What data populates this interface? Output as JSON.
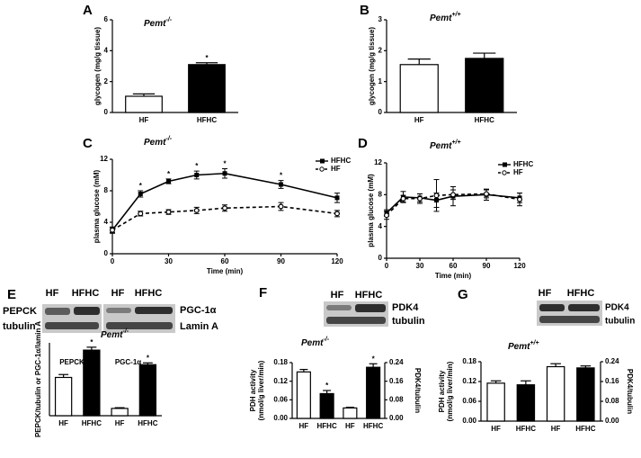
{
  "chart_data": [
    {
      "panel": "A",
      "type": "bar",
      "title": "Pemt",
      "title_superscript": "-/-",
      "ylabel": "glycogen (mg/g tissue)",
      "ylim": [
        0,
        6
      ],
      "yticks": [
        0,
        2,
        4,
        6
      ],
      "categories": [
        "HF",
        "HFHC"
      ],
      "series": [
        {
          "values": [
            1.05,
            3.1
          ],
          "errors": [
            0.15,
            0.12
          ],
          "colors": [
            "#ffffff",
            "#000000"
          ],
          "significance": [
            null,
            "*"
          ]
        }
      ]
    },
    {
      "panel": "B",
      "type": "bar",
      "title": "Pemt",
      "title_superscript": "+/+",
      "ylabel": "glycogen (mg/g tissue)",
      "ylim": [
        0,
        3
      ],
      "yticks": [
        0,
        1,
        2,
        3
      ],
      "categories": [
        "HF",
        "HFHC"
      ],
      "series": [
        {
          "values": [
            1.55,
            1.75
          ],
          "errors": [
            0.18,
            0.17
          ],
          "colors": [
            "#ffffff",
            "#000000"
          ]
        }
      ]
    },
    {
      "panel": "C",
      "type": "line",
      "title": "Pemt",
      "title_superscript": "-/-",
      "xlabel": "Time (min)",
      "ylabel": "plasma glucose (mM)",
      "xlim": [
        0,
        120
      ],
      "xticks": [
        0,
        30,
        60,
        90,
        120
      ],
      "ylim": [
        0,
        12
      ],
      "yticks": [
        0,
        4,
        8,
        12
      ],
      "legend": "upper right",
      "x": [
        0,
        15,
        30,
        45,
        60,
        90,
        120
      ],
      "series": [
        {
          "name": "HFHC",
          "color": "#000000",
          "marker": "square",
          "dashed": false,
          "values": [
            3.0,
            7.6,
            9.2,
            10.0,
            10.2,
            8.8,
            7.1
          ],
          "errors": [
            0.4,
            0.4,
            0.3,
            0.5,
            0.6,
            0.5,
            0.6
          ],
          "significance": [
            null,
            "*",
            "*",
            "*",
            "*",
            "*",
            null
          ]
        },
        {
          "name": "HF",
          "color": "#000000",
          "marker": "circle",
          "dashed": true,
          "values": [
            3.0,
            5.1,
            5.3,
            5.5,
            5.8,
            6.0,
            5.1
          ],
          "errors": [
            0.3,
            0.3,
            0.3,
            0.4,
            0.4,
            0.5,
            0.4
          ]
        }
      ]
    },
    {
      "panel": "D",
      "type": "line",
      "title": "Pemt",
      "title_superscript": "+/+",
      "xlabel": "Time (min)",
      "ylabel": "plasma glucose (mM)",
      "xlim": [
        0,
        120
      ],
      "xticks": [
        0,
        30,
        60,
        90,
        120
      ],
      "ylim": [
        0,
        12
      ],
      "yticks": [
        0,
        4,
        8,
        12
      ],
      "legend": "upper right",
      "x": [
        0,
        15,
        30,
        45,
        60,
        90,
        120
      ],
      "series": [
        {
          "name": "HFHC",
          "color": "#000000",
          "marker": "square",
          "dashed": false,
          "values": [
            5.7,
            7.7,
            7.6,
            7.3,
            7.8,
            8.0,
            7.6
          ],
          "errors": [
            0.4,
            0.7,
            0.5,
            0.9,
            1.2,
            0.7,
            0.6
          ]
        },
        {
          "name": "HF",
          "color": "#000000",
          "marker": "circle",
          "dashed": true,
          "values": [
            5.4,
            7.5,
            7.5,
            7.9,
            8.0,
            8.1,
            7.4
          ],
          "errors": [
            0.5,
            0.4,
            0.6,
            2.0,
            0.6,
            0.5,
            0.8
          ]
        }
      ]
    },
    {
      "panel": "E",
      "type": "bar",
      "title": "Pemt",
      "title_superscript": "-/-",
      "ylabel": "PEPCK/tubulin or PGC-1α/lamin A",
      "ylim": [
        0,
        2
      ],
      "categories": [
        "HF",
        "HFHC",
        "HF",
        "HFHC"
      ],
      "group_labels": [
        "PEPCK",
        "PGC-1α"
      ],
      "series": [
        {
          "values": [
            1.05,
            1.8,
            0.2,
            1.4
          ],
          "errors": [
            0.08,
            0.08,
            0.02,
            0.05
          ],
          "colors": [
            "#ffffff",
            "#000000",
            "#ffffff",
            "#000000"
          ],
          "significance": [
            null,
            "*",
            null,
            "*"
          ]
        }
      ],
      "blot": {
        "lanes": [
          "HF",
          "HFHC",
          "HF",
          "HFHC"
        ],
        "left": [
          "PEPCK",
          "tubulin"
        ],
        "right": [
          "PGC-1α",
          "Lamin A"
        ]
      }
    },
    {
      "panel": "F",
      "type": "bar",
      "title": "Pemt",
      "title_superscript": "-/-",
      "ylabel": [
        "PDH activity",
        "(nmol/g liver/min)"
      ],
      "y2label": "PDK4/tubulin",
      "ylim": [
        0,
        0.18
      ],
      "yticks": [
        {
          "value": 0,
          "label": "0.00"
        },
        0.06,
        0.12,
        0.18
      ],
      "y2lim": [
        0,
        0.24
      ],
      "y2ticks": [
        {
          "value": 0,
          "label": "0.00"
        },
        0.08,
        0.16,
        0.24
      ],
      "categories": [
        "HF",
        "HFHC",
        "HF",
        "HFHC"
      ],
      "series": [
        {
          "values": [
            0.15,
            0.08,
            null,
            null
          ],
          "errors": [
            0.008,
            0.01,
            null,
            null
          ],
          "colors": [
            "#ffffff",
            "#000000",
            null,
            null
          ],
          "significance": [
            null,
            "*",
            null,
            null
          ]
        },
        {
          "axis": "y2",
          "values": [
            null,
            null,
            0.045,
            0.22
          ],
          "errors": [
            null,
            null,
            0.003,
            0.015
          ],
          "colors": [
            null,
            null,
            "#ffffff",
            "#000000"
          ],
          "significance": [
            null,
            null,
            null,
            "*"
          ]
        }
      ],
      "blot": {
        "lanes": [
          "HF",
          "HFHC"
        ],
        "right": [
          "PDK4",
          "tubulin"
        ]
      }
    },
    {
      "panel": "G",
      "type": "bar",
      "title": "Pemt",
      "title_superscript": "+/+",
      "ylabel": [
        "PDH activity",
        "(nmol/g liver/min)"
      ],
      "y2label": "PDK4/tubulin",
      "ylim": [
        0,
        0.18
      ],
      "yticks": [
        {
          "value": 0,
          "label": "0.00"
        },
        0.06,
        0.12,
        0.18
      ],
      "y2lim": [
        0,
        0.24
      ],
      "y2ticks": [
        {
          "value": 0,
          "label": "0.00"
        },
        0.08,
        0.16,
        0.24
      ],
      "categories": [
        "HF",
        "HFHC",
        "HF",
        "HFHC"
      ],
      "series": [
        {
          "values": [
            0.115,
            0.11,
            null,
            null
          ],
          "errors": [
            0.007,
            0.012,
            null,
            null
          ],
          "colors": [
            "#ffffff",
            "#000000",
            null,
            null
          ]
        },
        {
          "axis": "y2",
          "values": [
            null,
            null,
            0.22,
            0.215
          ],
          "errors": [
            null,
            null,
            0.012,
            0.008
          ],
          "colors": [
            null,
            null,
            "#ffffff",
            "#000000"
          ]
        }
      ],
      "blot": {
        "lanes": [
          "HF",
          "HFHC"
        ],
        "right": [
          "PDK4",
          "tubulin"
        ]
      }
    }
  ]
}
